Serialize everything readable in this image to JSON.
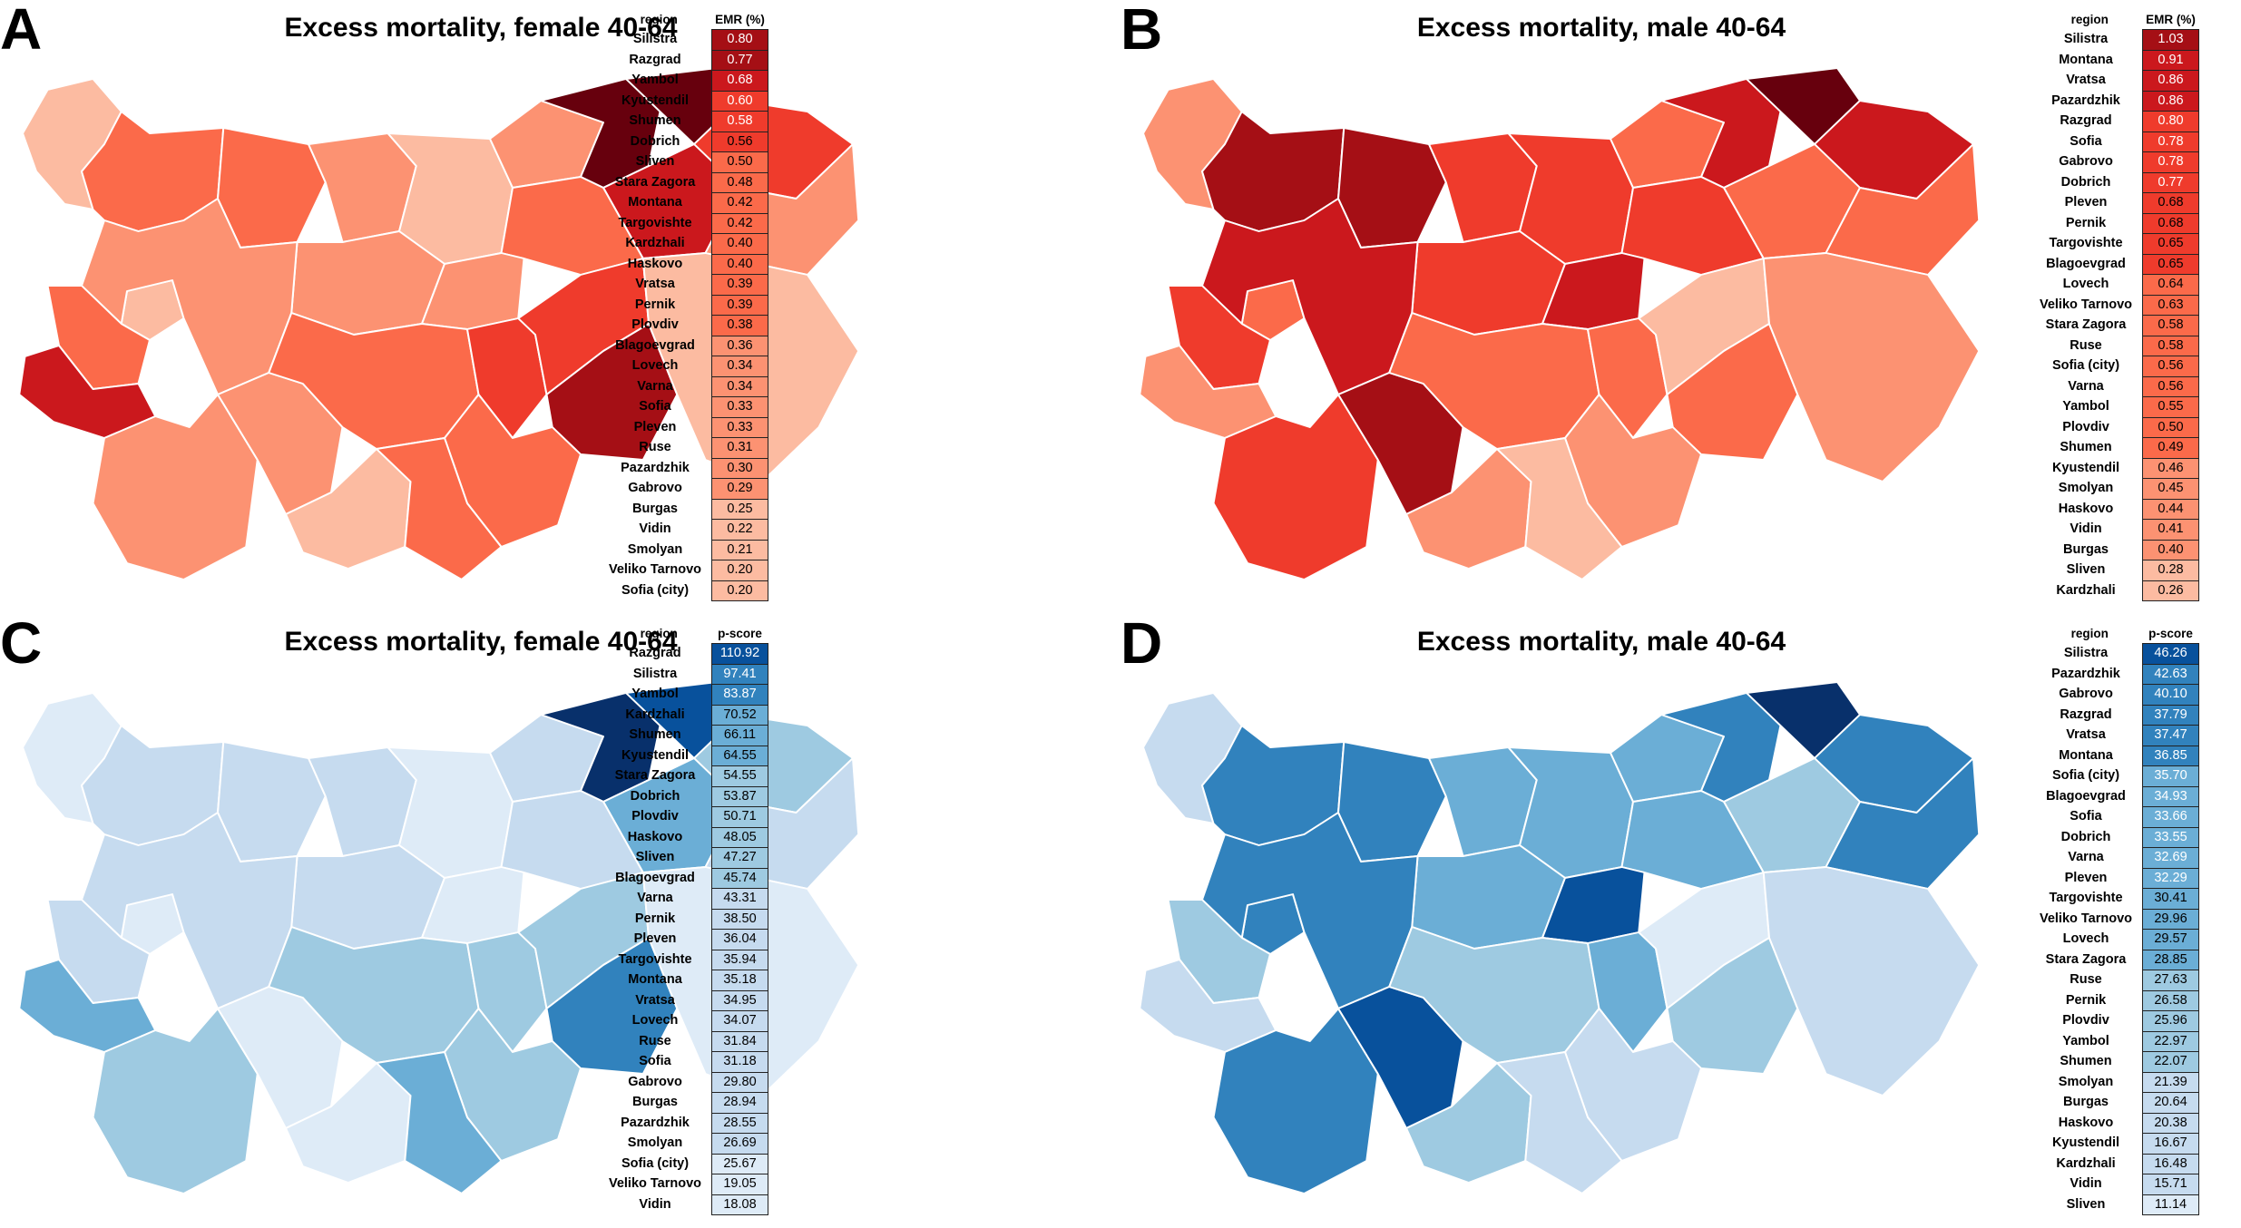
{
  "panels": [
    {
      "letter": "A",
      "title": "Excess mortality, female 40-64",
      "table_header": {
        "region": "region",
        "value": "EMR (%)"
      },
      "scale": "red",
      "rows": [
        {
          "region": "Silistra",
          "value": "0.80"
        },
        {
          "region": "Razgrad",
          "value": "0.77"
        },
        {
          "region": "Yambol",
          "value": "0.68"
        },
        {
          "region": "Kyustendil",
          "value": "0.60"
        },
        {
          "region": "Shumen",
          "value": "0.58"
        },
        {
          "region": "Dobrich",
          "value": "0.56"
        },
        {
          "region": "Sliven",
          "value": "0.50"
        },
        {
          "region": "Stara Zagora",
          "value": "0.48"
        },
        {
          "region": "Montana",
          "value": "0.42"
        },
        {
          "region": "Targovishte",
          "value": "0.42"
        },
        {
          "region": "Kardzhali",
          "value": "0.40"
        },
        {
          "region": "Haskovo",
          "value": "0.40"
        },
        {
          "region": "Vratsa",
          "value": "0.39"
        },
        {
          "region": "Pernik",
          "value": "0.39"
        },
        {
          "region": "Plovdiv",
          "value": "0.38"
        },
        {
          "region": "Blagoevgrad",
          "value": "0.36"
        },
        {
          "region": "Lovech",
          "value": "0.34"
        },
        {
          "region": "Varna",
          "value": "0.34"
        },
        {
          "region": "Sofia",
          "value": "0.33"
        },
        {
          "region": "Pleven",
          "value": "0.33"
        },
        {
          "region": "Ruse",
          "value": "0.31"
        },
        {
          "region": "Pazardzhik",
          "value": "0.30"
        },
        {
          "region": "Gabrovo",
          "value": "0.29"
        },
        {
          "region": "Burgas",
          "value": "0.25"
        },
        {
          "region": "Vidin",
          "value": "0.22"
        },
        {
          "region": "Smolyan",
          "value": "0.21"
        },
        {
          "region": "Veliko Tarnovo",
          "value": "0.20"
        },
        {
          "region": "Sofia (city)",
          "value": "0.20"
        }
      ]
    },
    {
      "letter": "B",
      "title": "Excess mortality, male 40-64",
      "table_header": {
        "region": "region",
        "value": "EMR (%)"
      },
      "scale": "red",
      "rows": [
        {
          "region": "Silistra",
          "value": "1.03"
        },
        {
          "region": "Montana",
          "value": "0.91"
        },
        {
          "region": "Vratsa",
          "value": "0.86"
        },
        {
          "region": "Pazardzhik",
          "value": "0.86"
        },
        {
          "region": "Razgrad",
          "value": "0.80"
        },
        {
          "region": "Sofia",
          "value": "0.78"
        },
        {
          "region": "Gabrovo",
          "value": "0.78"
        },
        {
          "region": "Dobrich",
          "value": "0.77"
        },
        {
          "region": "Pleven",
          "value": "0.68"
        },
        {
          "region": "Pernik",
          "value": "0.68"
        },
        {
          "region": "Targovishte",
          "value": "0.65"
        },
        {
          "region": "Blagoevgrad",
          "value": "0.65"
        },
        {
          "region": "Lovech",
          "value": "0.64"
        },
        {
          "region": "Veliko Tarnovo",
          "value": "0.63"
        },
        {
          "region": "Stara Zagora",
          "value": "0.58"
        },
        {
          "region": "Ruse",
          "value": "0.58"
        },
        {
          "region": "Sofia (city)",
          "value": "0.56"
        },
        {
          "region": "Varna",
          "value": "0.56"
        },
        {
          "region": "Yambol",
          "value": "0.55"
        },
        {
          "region": "Plovdiv",
          "value": "0.50"
        },
        {
          "region": "Shumen",
          "value": "0.49"
        },
        {
          "region": "Kyustendil",
          "value": "0.46"
        },
        {
          "region": "Smolyan",
          "value": "0.45"
        },
        {
          "region": "Haskovo",
          "value": "0.44"
        },
        {
          "region": "Vidin",
          "value": "0.41"
        },
        {
          "region": "Burgas",
          "value": "0.40"
        },
        {
          "region": "Sliven",
          "value": "0.28"
        },
        {
          "region": "Kardzhali",
          "value": "0.26"
        }
      ]
    },
    {
      "letter": "C",
      "title": "Excess mortality, female 40-64",
      "table_header": {
        "region": "region",
        "value": "p-score"
      },
      "scale": "blue",
      "rows": [
        {
          "region": "Razgrad",
          "value": "110.92"
        },
        {
          "region": "Silistra",
          "value": "97.41"
        },
        {
          "region": "Yambol",
          "value": "83.87"
        },
        {
          "region": "Kardzhali",
          "value": "70.52"
        },
        {
          "region": "Shumen",
          "value": "66.11"
        },
        {
          "region": "Kyustendil",
          "value": "64.55"
        },
        {
          "region": "Stara Zagora",
          "value": "54.55"
        },
        {
          "region": "Dobrich",
          "value": "53.87"
        },
        {
          "region": "Plovdiv",
          "value": "50.71"
        },
        {
          "region": "Haskovo",
          "value": "48.05"
        },
        {
          "region": "Sliven",
          "value": "47.27"
        },
        {
          "region": "Blagoevgrad",
          "value": "45.74"
        },
        {
          "region": "Varna",
          "value": "43.31"
        },
        {
          "region": "Pernik",
          "value": "38.50"
        },
        {
          "region": "Pleven",
          "value": "36.04"
        },
        {
          "region": "Targovishte",
          "value": "35.94"
        },
        {
          "region": "Montana",
          "value": "35.18"
        },
        {
          "region": "Vratsa",
          "value": "34.95"
        },
        {
          "region": "Lovech",
          "value": "34.07"
        },
        {
          "region": "Ruse",
          "value": "31.84"
        },
        {
          "region": "Sofia",
          "value": "31.18"
        },
        {
          "region": "Gabrovo",
          "value": "29.80"
        },
        {
          "region": "Burgas",
          "value": "28.94"
        },
        {
          "region": "Pazardzhik",
          "value": "28.55"
        },
        {
          "region": "Smolyan",
          "value": "26.69"
        },
        {
          "region": "Sofia (city)",
          "value": "25.67"
        },
        {
          "region": "Veliko Tarnovo",
          "value": "19.05"
        },
        {
          "region": "Vidin",
          "value": "18.08"
        }
      ]
    },
    {
      "letter": "D",
      "title": "Excess mortality, male 40-64",
      "table_header": {
        "region": "region",
        "value": "p-score"
      },
      "scale": "blue",
      "rows": [
        {
          "region": "Silistra",
          "value": "46.26"
        },
        {
          "region": "Pazardzhik",
          "value": "42.63"
        },
        {
          "region": "Gabrovo",
          "value": "40.10"
        },
        {
          "region": "Razgrad",
          "value": "37.79"
        },
        {
          "region": "Vratsa",
          "value": "37.47"
        },
        {
          "region": "Montana",
          "value": "36.85"
        },
        {
          "region": "Sofia (city)",
          "value": "35.70"
        },
        {
          "region": "Blagoevgrad",
          "value": "34.93"
        },
        {
          "region": "Sofia",
          "value": "33.66"
        },
        {
          "region": "Dobrich",
          "value": "33.55"
        },
        {
          "region": "Varna",
          "value": "32.69"
        },
        {
          "region": "Pleven",
          "value": "32.29"
        },
        {
          "region": "Targovishte",
          "value": "30.41"
        },
        {
          "region": "Veliko Tarnovo",
          "value": "29.96"
        },
        {
          "region": "Lovech",
          "value": "29.57"
        },
        {
          "region": "Stara Zagora",
          "value": "28.85"
        },
        {
          "region": "Ruse",
          "value": "27.63"
        },
        {
          "region": "Pernik",
          "value": "26.58"
        },
        {
          "region": "Plovdiv",
          "value": "25.96"
        },
        {
          "region": "Yambol",
          "value": "22.97"
        },
        {
          "region": "Shumen",
          "value": "22.07"
        },
        {
          "region": "Smolyan",
          "value": "21.39"
        },
        {
          "region": "Burgas",
          "value": "20.64"
        },
        {
          "region": "Haskovo",
          "value": "20.38"
        },
        {
          "region": "Kyustendil",
          "value": "16.67"
        },
        {
          "region": "Kardzhali",
          "value": "16.48"
        },
        {
          "region": "Vidin",
          "value": "15.71"
        },
        {
          "region": "Sliven",
          "value": "11.14"
        }
      ]
    }
  ],
  "colors": {
    "red_scale": [
      "#fde0d2",
      "#fcbba1",
      "#fc9272",
      "#fb6a4a",
      "#ef3b2c",
      "#cb181d",
      "#a50f15",
      "#67000d"
    ],
    "blue_scale": [
      "#f4f9fe",
      "#deebf7",
      "#c6dbef",
      "#9ecae1",
      "#6baed6",
      "#3182bd",
      "#08519c",
      "#08306b"
    ]
  }
}
